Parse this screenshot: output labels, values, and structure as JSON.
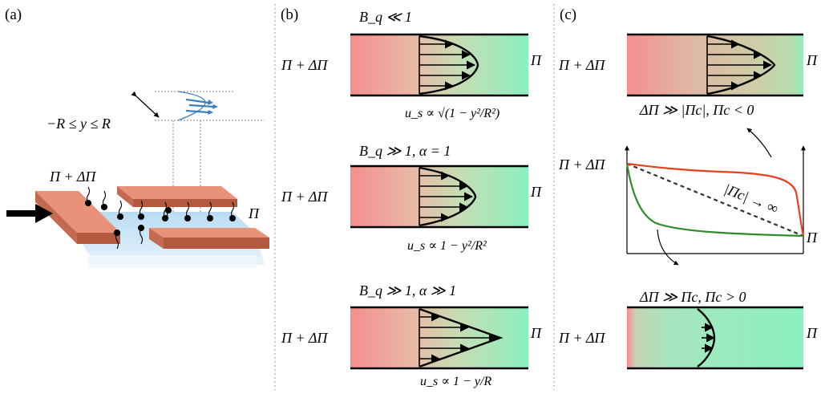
{
  "panels": {
    "a": {
      "label": "(a)",
      "range_label": "−R ≤ y ≤ R",
      "left_label": "Π + ΔΠ",
      "right_label": "Π"
    },
    "b": {
      "label": "(b)",
      "cases": [
        {
          "regime": "B_q ≪ 1",
          "left_label": "Π + ΔΠ",
          "right_label": "Π",
          "profile": "u_s ∝ √(1 − y²/R²)"
        },
        {
          "regime": "B_q ≫ 1, α = 1",
          "left_label": "Π + ΔΠ",
          "right_label": "Π",
          "profile": "u_s ∝ 1 − y²/R²"
        },
        {
          "regime": "B_q ≫ 1, α ≫ 1",
          "left_label": "Π + ΔΠ",
          "right_label": "Π",
          "profile": "u_s ∝ 1 − y/R"
        }
      ]
    },
    "c": {
      "label": "(c)",
      "top": {
        "left_label": "Π + ΔΠ",
        "right_label": "Π",
        "condition": "ΔΠ ≫ |Πc|,   Πc < 0"
      },
      "graph": {
        "left_label": "Π + ΔΠ",
        "right_label": "Π",
        "curve_label": "|Πc| → ∞"
      },
      "bottom": {
        "left_label": "Π + ΔΠ",
        "right_label": "Π",
        "condition": "ΔΠ ≫ Πc,   Πc > 0"
      }
    }
  },
  "colors": {
    "high_pressure": "#f28b8b",
    "low_pressure": "#8ff0c0",
    "wall": "#d97a5f",
    "substrate": "#bfe0f5",
    "red_curve": "#e8401c",
    "green_curve": "#2e8b2e"
  }
}
